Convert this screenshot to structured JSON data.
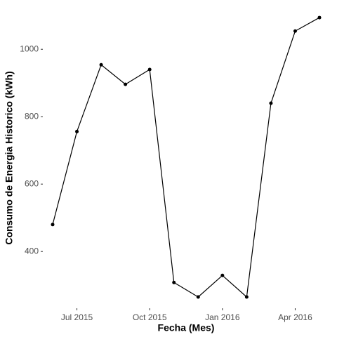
{
  "chart_data": {
    "type": "line",
    "x_label": "Fecha (Mes)",
    "y_label": "Consumo de Energia Historico (kWh)",
    "x": [
      "2015-06",
      "2015-07",
      "2015-08",
      "2015-09",
      "2015-10",
      "2015-11",
      "2015-12",
      "2016-01",
      "2016-02",
      "2016-03",
      "2016-04",
      "2016-05"
    ],
    "values": [
      480,
      756,
      954,
      896,
      940,
      308,
      265,
      329,
      265,
      840,
      1054,
      1094
    ],
    "color": "#000000",
    "xlim": [
      "2015-06",
      "2016-05"
    ],
    "xticks": [
      {
        "value": "2015-07",
        "label": "Jul 2015"
      },
      {
        "value": "2015-10",
        "label": "Oct 2015"
      },
      {
        "value": "2016-01",
        "label": "Jan 2016"
      },
      {
        "value": "2016-04",
        "label": "Apr 2016"
      }
    ],
    "ylim": [
      240,
      1115
    ],
    "yticks": [
      400,
      600,
      800,
      1000
    ],
    "grid": false
  }
}
